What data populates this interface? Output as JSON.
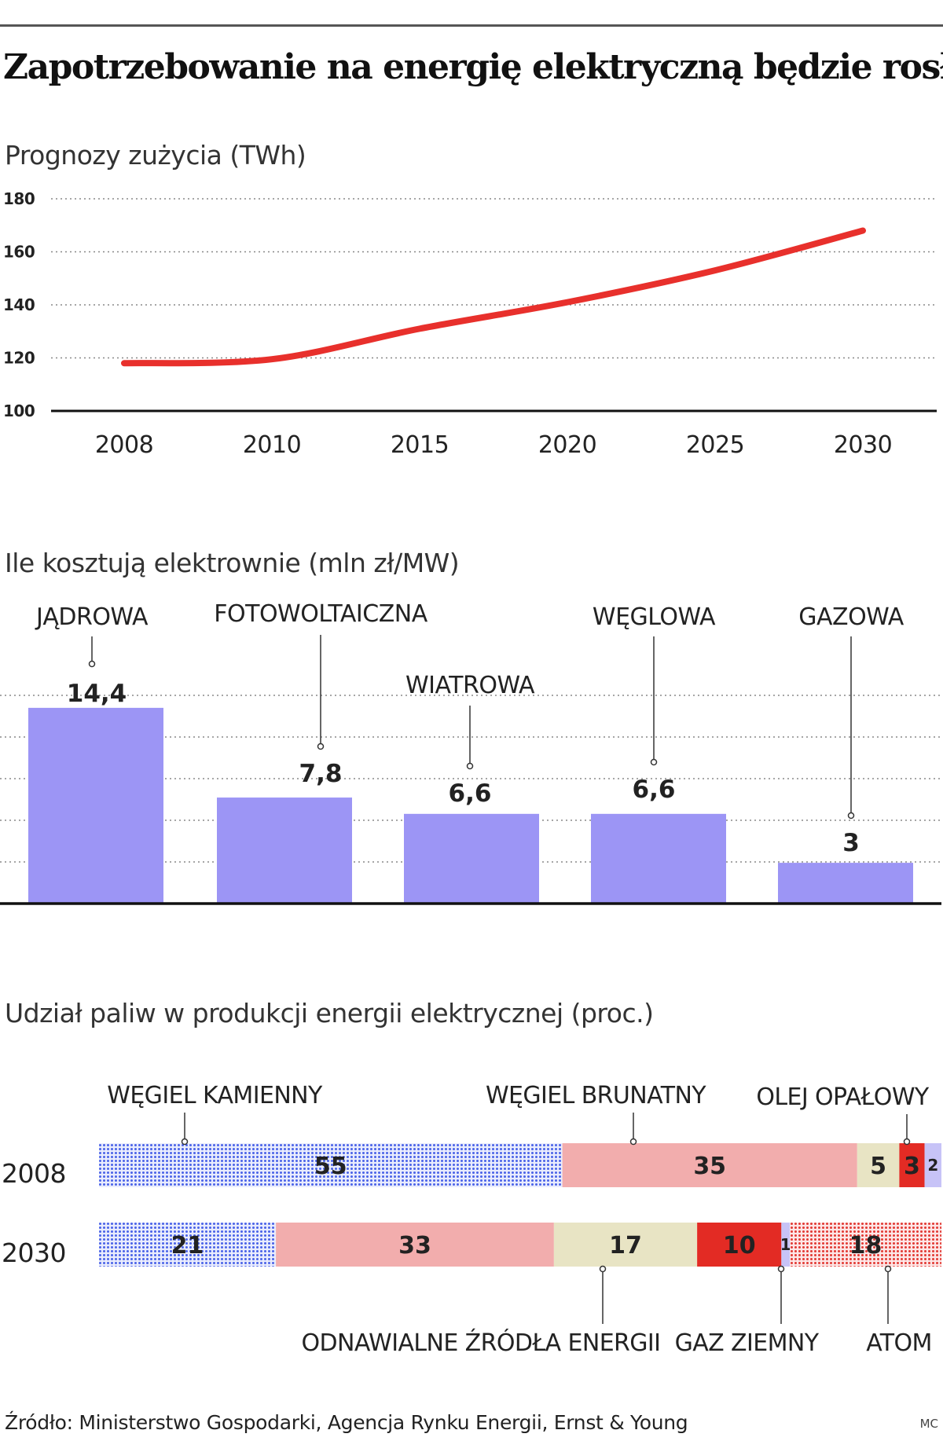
{
  "title": "Zapotrzebowanie na energię elektryczną będzie rosło",
  "source": "Źródło: Ministerstwo Gospodarki, Agencja Rynku Energii, Ernst & Young",
  "credit": "MC",
  "colors": {
    "line": "#e8302c",
    "bar": "#9c95f5",
    "coal": "#4a63e8",
    "lignite": "#f2adad",
    "oil": "#e8e4c4",
    "gasRed": "#e32b24",
    "atomRed": "#e23a34",
    "gas": "#c7c3f7"
  },
  "chart_data": [
    {
      "type": "line",
      "title": "Prognozy zużycia (TWh)",
      "x": [
        "2008",
        "2010",
        "2015",
        "2020",
        "2025",
        "2030"
      ],
      "series": [
        {
          "values": [
            118,
            119.5,
            131,
            141,
            153,
            168
          ]
        }
      ],
      "yticks": [
        100,
        120,
        140,
        160,
        180
      ],
      "ylim": [
        100,
        180
      ],
      "grid": true
    },
    {
      "type": "bar",
      "title": "Ile kosztują elektrownie (mln zł/MW)",
      "categories": [
        "JĄDROWA",
        "FOTOWOLTAICZNA",
        "WIATROWA",
        "WĘGLOWA",
        "GAZOWA"
      ],
      "values": [
        14.4,
        7.8,
        6.6,
        6.6,
        3
      ],
      "value_labels": [
        "14,4",
        "7,8",
        "6,6",
        "6,6",
        "3"
      ],
      "ylim": [
        0,
        15
      ],
      "grid": true
    },
    {
      "type": "bar",
      "title": "Udział paliw w produkcji energii elektrycznej (proc.)",
      "categories": [
        "2008",
        "2030"
      ],
      "stacked": true,
      "horizontal": true,
      "series": [
        {
          "name": "WĘGIEL KAMIENNY",
          "values": [
            55,
            21
          ]
        },
        {
          "name": "WĘGIEL BRUNATNY",
          "values": [
            35,
            33
          ]
        },
        {
          "name": "ODNAWIALNE ŹRÓDŁA ENERGII",
          "values": [
            5,
            17
          ]
        },
        {
          "name": "OLEJ OPAŁOWY",
          "values": [
            3,
            10
          ]
        },
        {
          "name": "GAZ ZIEMNY",
          "values": [
            2,
            1
          ]
        },
        {
          "name": "ATOM",
          "values": [
            0,
            18
          ]
        }
      ]
    }
  ]
}
